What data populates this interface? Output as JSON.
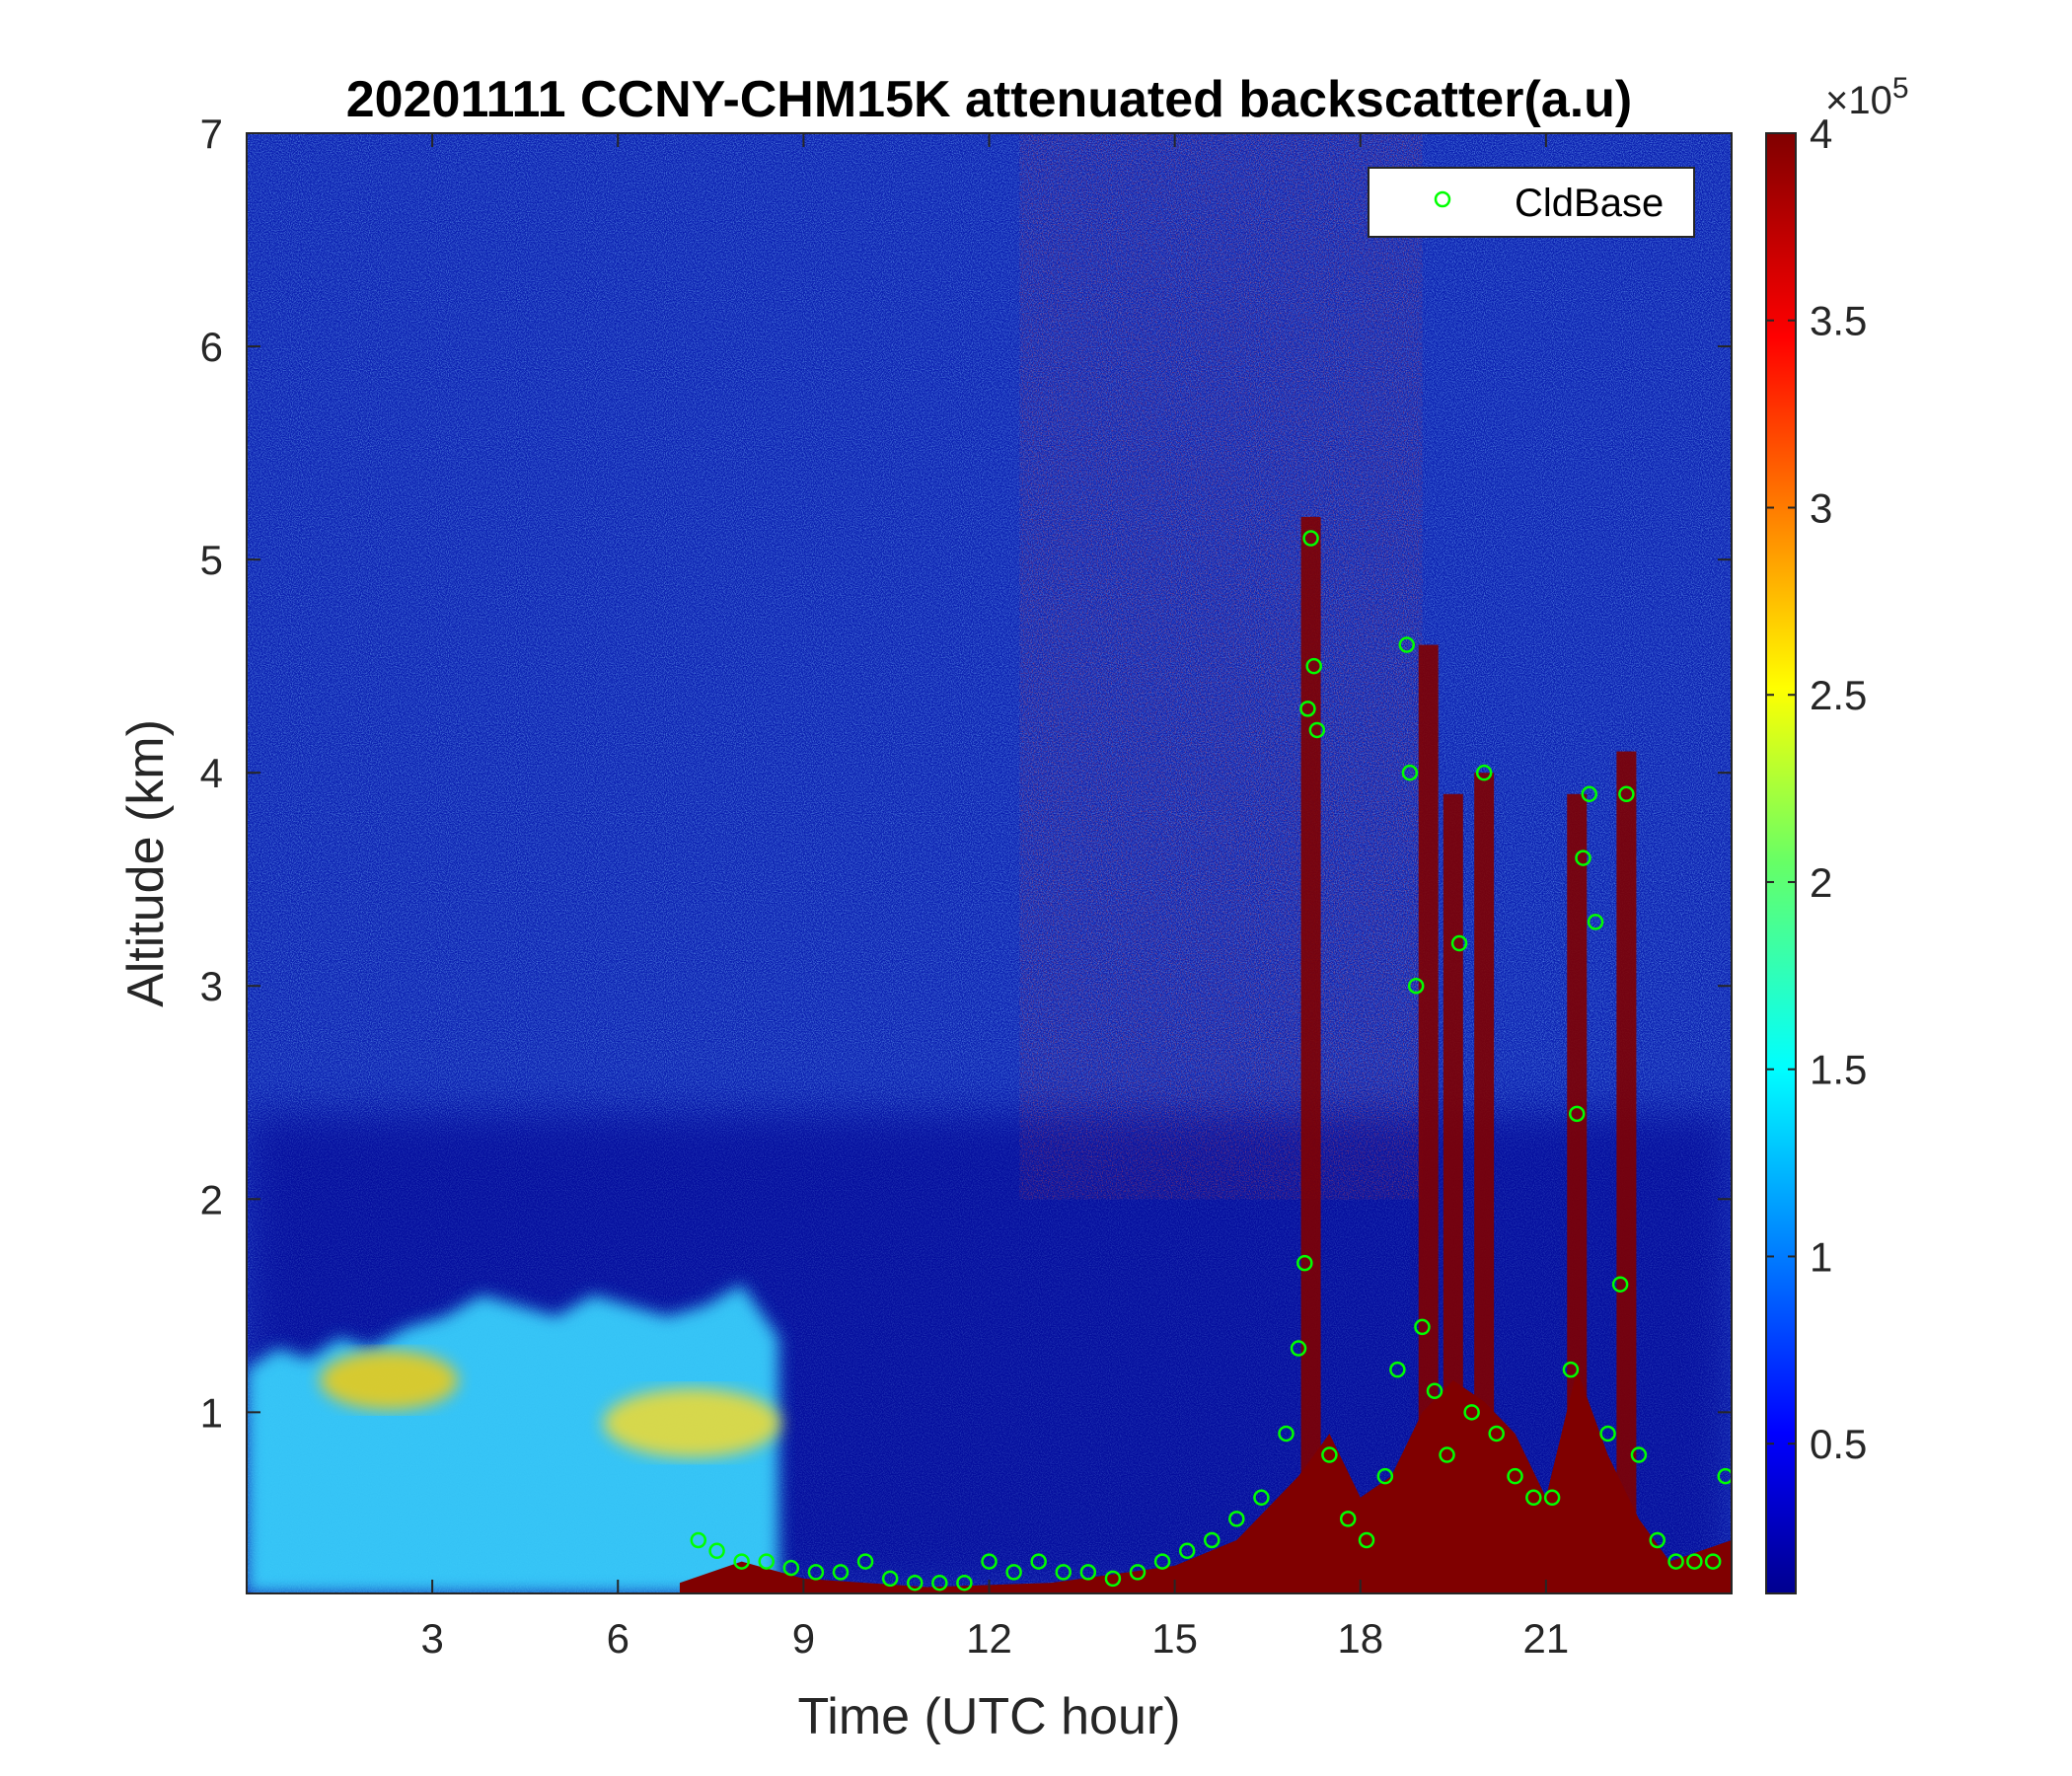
{
  "chart_data": {
    "type": "heatmap",
    "title": "20201111 CCNY-CHM15K attenuated backscatter(a.u)",
    "xlabel": "Time (UTC hour)",
    "ylabel": "Altitude (km)",
    "xlim": [
      0,
      24
    ],
    "ylim": [
      0.15,
      7
    ],
    "xticks": [
      3,
      6,
      9,
      12,
      15,
      18,
      21
    ],
    "yticks": [
      1,
      2,
      3,
      4,
      5,
      6,
      7
    ],
    "colorbar": {
      "colormap": "jet",
      "clim": [
        0.1,
        4
      ],
      "ticks": [
        0.5,
        1,
        1.5,
        2,
        2.5,
        3,
        3.5,
        4
      ],
      "multiplier_base": "×10",
      "multiplier_exponent": "5"
    },
    "legend": {
      "entries": [
        "CldBase"
      ],
      "position": "top-right",
      "marker": "circle",
      "color": "#00ff00"
    },
    "features": [
      {
        "name": "boundary-layer-aerosol",
        "x": [
          0,
          8.5
        ],
        "top_km": [
          1.3,
          1.6
        ],
        "value_range": [
          1.0,
          2.5
        ]
      },
      {
        "name": "near-surface-high-backscatter",
        "x": [
          7,
          24
        ],
        "top_km": [
          0.2,
          1.2
        ],
        "value": 4.0
      },
      {
        "name": "noisy-upper-layer-high-values",
        "x": [
          12.5,
          19
        ],
        "y_km": [
          2,
          7
        ]
      },
      {
        "name": "cloud-columns",
        "x": [
          17.2,
          19.1,
          19.5,
          20,
          21.5,
          22.3
        ],
        "top_km": [
          5.2,
          4.6,
          3.9,
          4.0,
          3.9,
          4.1
        ]
      }
    ],
    "series": [
      {
        "name": "CldBase",
        "x": [
          7.3,
          7.6,
          8.0,
          8.4,
          8.8,
          9.2,
          9.6,
          10.0,
          10.4,
          10.8,
          11.2,
          11.6,
          12.0,
          12.4,
          12.8,
          13.2,
          13.6,
          14.0,
          14.4,
          14.8,
          15.2,
          15.6,
          16.0,
          16.4,
          16.8,
          17.0,
          17.1,
          17.15,
          17.2,
          17.25,
          17.3,
          17.5,
          17.8,
          18.1,
          18.4,
          18.6,
          18.75,
          18.8,
          18.9,
          19.0,
          19.2,
          19.4,
          19.6,
          19.8,
          20.0,
          20.2,
          20.5,
          20.8,
          21.1,
          21.4,
          21.5,
          21.6,
          21.7,
          21.8,
          22.0,
          22.2,
          22.3,
          22.5,
          22.8,
          23.1,
          23.4,
          23.7,
          23.9
        ],
        "y": [
          0.4,
          0.35,
          0.3,
          0.3,
          0.27,
          0.25,
          0.25,
          0.3,
          0.22,
          0.2,
          0.2,
          0.2,
          0.3,
          0.25,
          0.3,
          0.25,
          0.25,
          0.22,
          0.25,
          0.3,
          0.35,
          0.4,
          0.5,
          0.6,
          0.9,
          1.3,
          1.7,
          4.3,
          5.1,
          4.5,
          4.2,
          0.8,
          0.5,
          0.4,
          0.7,
          1.2,
          4.6,
          4.0,
          3.0,
          1.4,
          1.1,
          0.8,
          3.2,
          1.0,
          4.0,
          0.9,
          0.7,
          0.6,
          0.6,
          1.2,
          2.4,
          3.6,
          3.9,
          3.3,
          0.9,
          1.6,
          3.9,
          0.8,
          0.4,
          0.3,
          0.3,
          0.3,
          0.7
        ]
      }
    ]
  }
}
